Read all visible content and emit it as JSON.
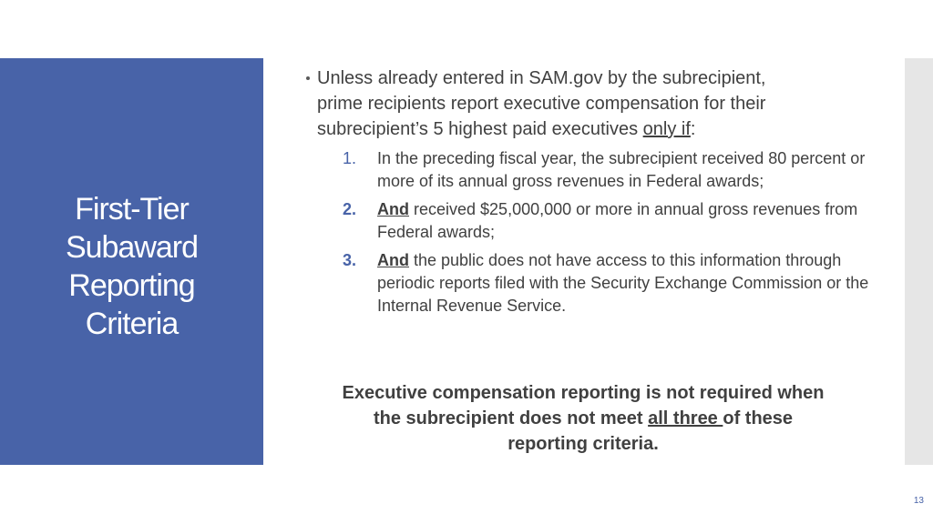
{
  "slide": {
    "title_lines": [
      "First-Tier",
      "Subaward",
      "Reporting",
      "Criteria"
    ],
    "bullet": {
      "line1": "Unless already entered in SAM.gov by the subrecipient,",
      "line2": "prime recipients report executive compensation for their",
      "line3_prefix": "subrecipient’s 5 highest paid executives ",
      "line3_underlined": "only if",
      "line3_suffix": ":"
    },
    "criteria": [
      {
        "marker": "1.",
        "emphasis": "",
        "text": "In the preceding fiscal year, the subrecipient received 80 percent or more of its annual gross revenues in Federal awards;"
      },
      {
        "marker": "2.",
        "emphasis": "And",
        "text": " received $25,000,000 or more in annual gross revenues from Federal awards;"
      },
      {
        "marker": "3.",
        "emphasis": "And",
        "text": " the public does not have access to this information through periodic reports filed with the Security Exchange Commission or the Internal Revenue Service."
      }
    ],
    "conclusion": {
      "line1": "Executive compensation reporting is not required when",
      "line2_prefix": "the subrecipient does not meet ",
      "line2_underlined": "all three ",
      "line2_suffix": "of these",
      "line3": "reporting criteria."
    },
    "page_number": "13"
  },
  "colors": {
    "accent": "#4863a8",
    "text": "#404040",
    "side_bar": "#e6e6e6"
  }
}
